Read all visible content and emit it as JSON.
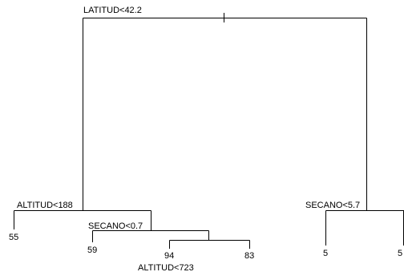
{
  "tree": {
    "root_split": "LATITUD<42.2",
    "left_split": "ALTITUD<188",
    "secano_left_split": "SECANO<0.7",
    "altitud_deep_split": "ALTITUD<723",
    "right_split": "SECANO<5.7",
    "leaves": {
      "leaf_55": "55",
      "leaf_59": "59",
      "leaf_94": "94",
      "leaf_83": "83",
      "leaf_5a": "5",
      "leaf_5b": "5"
    }
  }
}
